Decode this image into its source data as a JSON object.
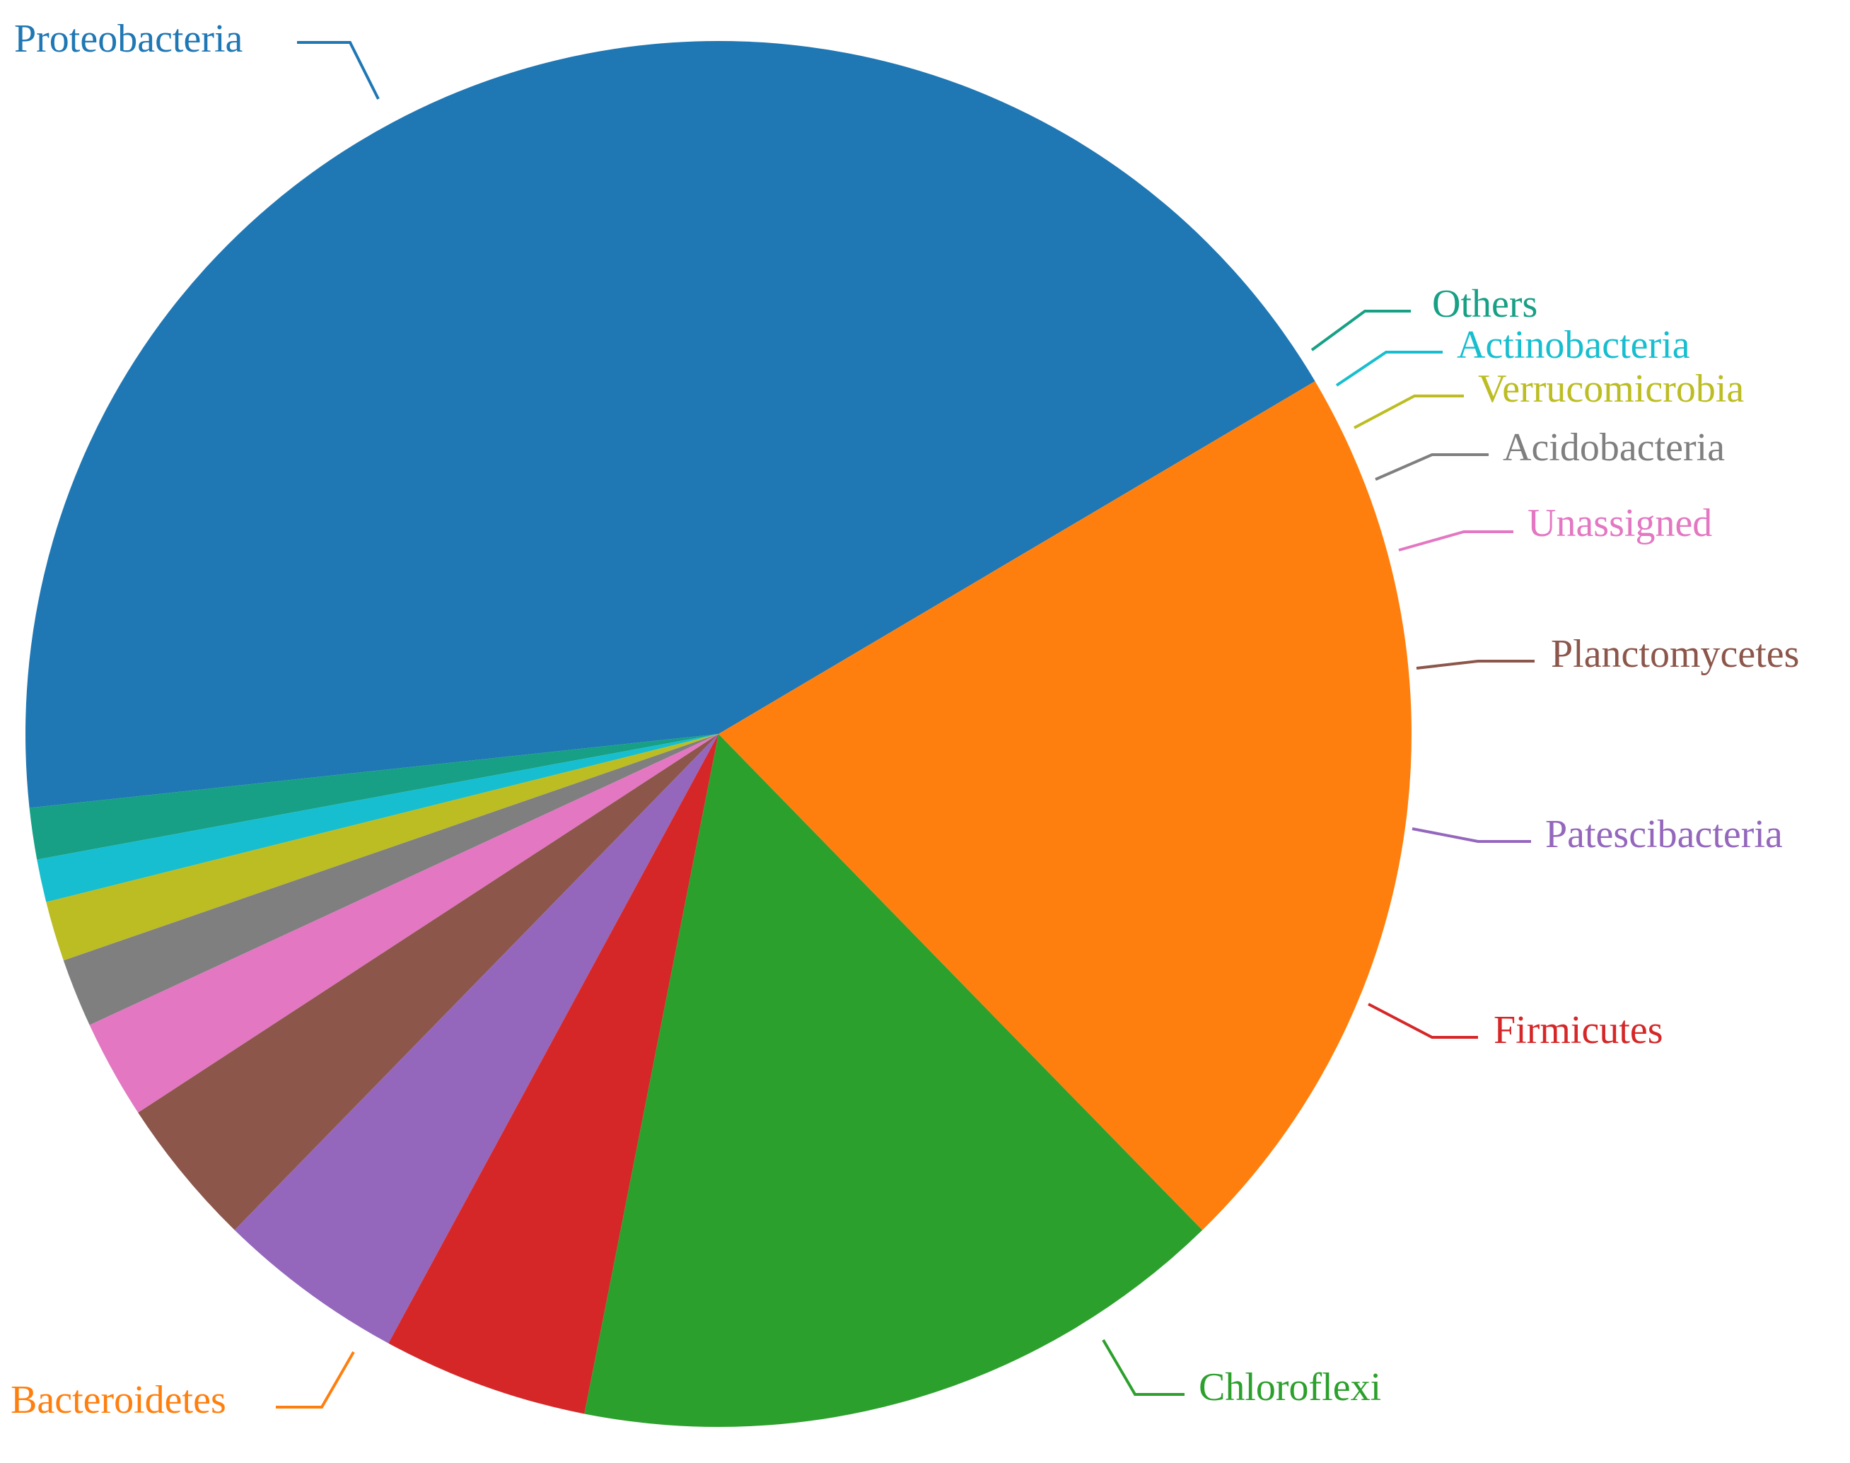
{
  "chart_data": {
    "type": "pie",
    "title": "",
    "slices": [
      {
        "label": "Proteobacteria",
        "value": 43.2,
        "color": "#1f77b4"
      },
      {
        "label": "Others",
        "value": 1.2,
        "color": "#17a085"
      },
      {
        "label": "Actinobacteria",
        "value": 1.0,
        "color": "#17becf"
      },
      {
        "label": "Verrucomicrobia",
        "value": 1.4,
        "color": "#bcbd22"
      },
      {
        "label": "Acidobacteria",
        "value": 1.6,
        "color": "#7f7f7f"
      },
      {
        "label": "Unassigned",
        "value": 2.3,
        "color": "#e377c2"
      },
      {
        "label": "Planctomycetes",
        "value": 3.5,
        "color": "#8c564b"
      },
      {
        "label": "Patescibacteria",
        "value": 4.4,
        "color": "#9467bd"
      },
      {
        "label": "Firmicutes",
        "value": 4.8,
        "color": "#d62728"
      },
      {
        "label": "Chloroflexi",
        "value": 15.4,
        "color": "#2ca02c"
      },
      {
        "label": "Bacteroidetes",
        "value": 21.2,
        "color": "#ff7f0e"
      }
    ],
    "order": "counterclockwise",
    "legend": "none",
    "labels": "outside with leader lines"
  }
}
